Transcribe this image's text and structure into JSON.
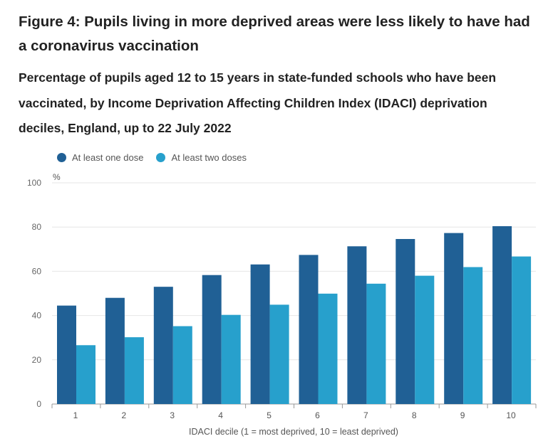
{
  "title": "Figure 4: Pupils living in more deprived areas were less likely to have had a coronavirus vaccination",
  "subtitle": "Percentage of pupils aged 12 to 15 years in state-funded schools who have been vaccinated, by Income Deprivation Affecting Children Index (IDACI) deprivation deciles, England, up to 22 July 2022",
  "chart_data": {
    "type": "bar",
    "title": "Figure 4: Pupils living in more deprived areas were less likely to have had a coronavirus vaccination",
    "xlabel": "IDACI decile (1 = most deprived, 10 = least deprived)",
    "ylabel": "%",
    "ylim": [
      0,
      100
    ],
    "yticks": [
      0,
      20,
      40,
      60,
      80,
      100
    ],
    "grid": true,
    "legend_position": "top-left",
    "categories": [
      "1",
      "2",
      "3",
      "4",
      "5",
      "6",
      "7",
      "8",
      "9",
      "10"
    ],
    "series": [
      {
        "name": "At least one dose",
        "color": "#206095",
        "values": [
          44.5,
          48,
          53,
          58.3,
          63.1,
          67.4,
          71.3,
          74.6,
          77.3,
          80.4
        ]
      },
      {
        "name": "At least two doses",
        "color": "#27a0cc",
        "values": [
          26.6,
          30.2,
          35.2,
          40.3,
          44.9,
          49.9,
          54.4,
          58,
          61.9,
          66.7
        ]
      }
    ]
  }
}
